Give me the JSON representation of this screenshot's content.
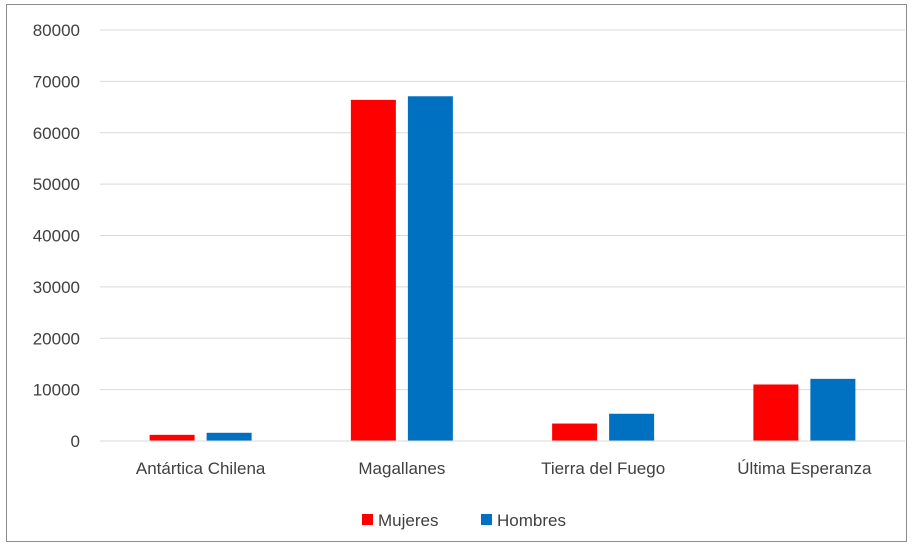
{
  "chart_data": {
    "type": "bar",
    "categories": [
      "Antártica Chilena",
      "Magallanes",
      "Tierra del Fuego",
      "Última Esperanza"
    ],
    "series": [
      {
        "name": "Mujeres",
        "color": "#ff0000",
        "values": [
          1200,
          66400,
          3400,
          11000
        ]
      },
      {
        "name": "Hombres",
        "color": "#0070c0",
        "values": [
          1600,
          67100,
          5300,
          12100
        ]
      }
    ],
    "title": "",
    "xlabel": "",
    "ylabel": "",
    "ylim": [
      0,
      80000
    ],
    "yticks": [
      0,
      10000,
      20000,
      30000,
      40000,
      50000,
      60000,
      70000,
      80000
    ],
    "grid": true,
    "legend_position": "bottom"
  }
}
